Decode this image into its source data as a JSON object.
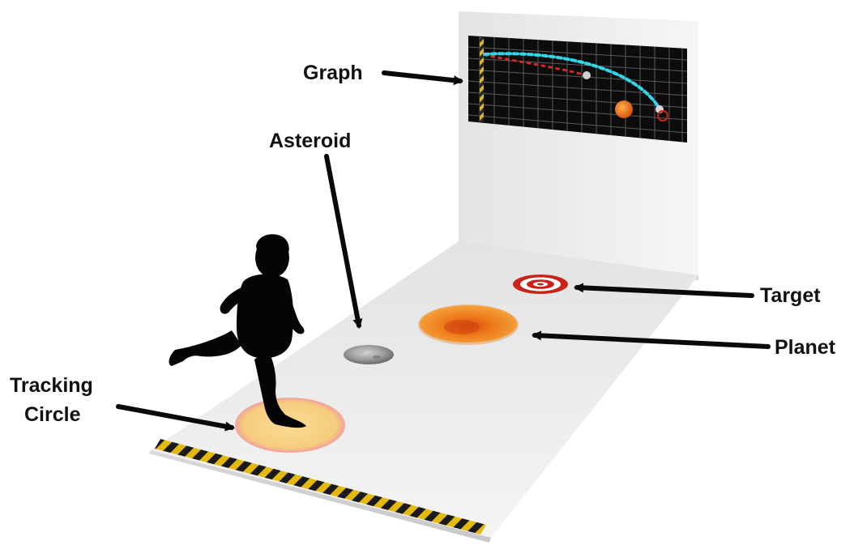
{
  "labels": {
    "graph": "Graph",
    "asteroid": "Asteroid",
    "target": "Target",
    "planet": "Planet",
    "tracking_line1": "Tracking",
    "tracking_line2": "Circle"
  },
  "colors": {
    "floor": "#efefef",
    "wall": "#ebebeb",
    "graph_background": "#0c0c0c",
    "graph_grid": "#5a5a5a",
    "trajectory_main": "#35d3e6",
    "trajectory_secondary": "#d12a24",
    "planet": "#e8741c",
    "target_red": "#c9231c",
    "tracking_fill": "#f7d38a",
    "tracking_edge": "#f0a8a0",
    "hazard_yellow": "#e3b80f",
    "hazard_black": "#1a1a1a",
    "silhouette": "#050505",
    "arrow": "#0a0a0a"
  },
  "icons": {
    "child": "running-child-silhouette-icon",
    "asteroid": "asteroid-icon",
    "planet": "planet-icon",
    "target": "target-icon",
    "tracking_circle": "tracking-circle-icon"
  }
}
